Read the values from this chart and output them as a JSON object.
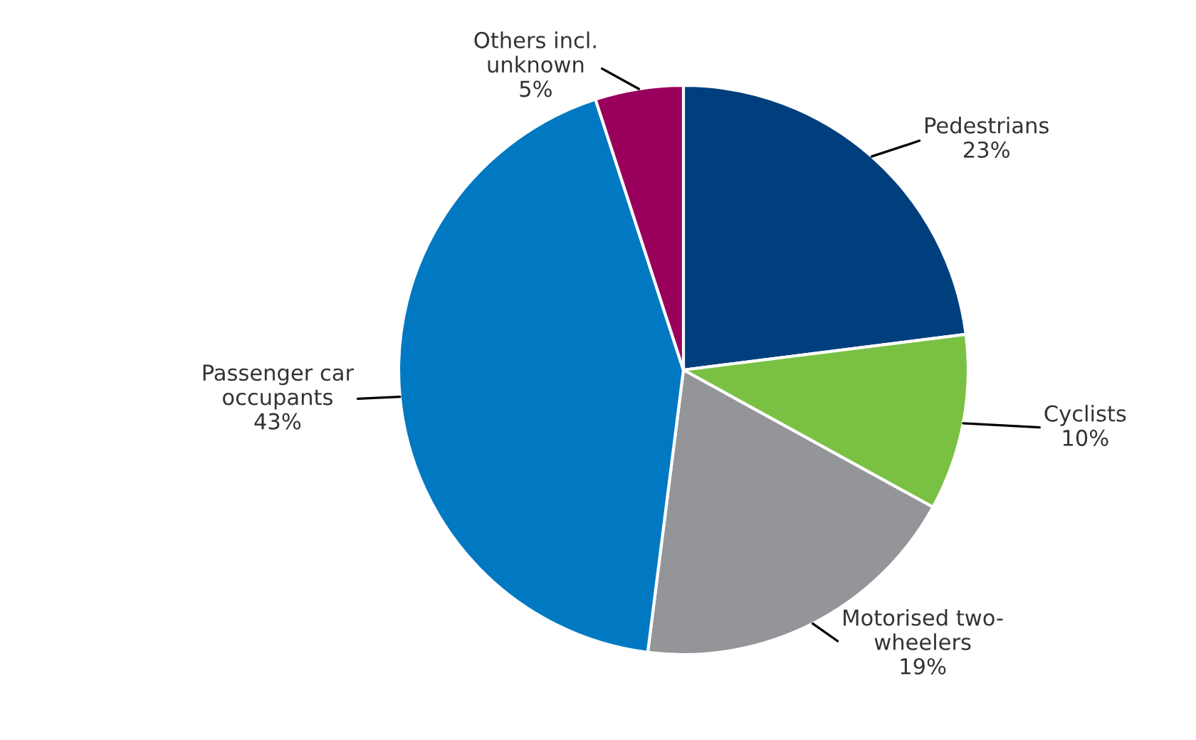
{
  "chart_data": {
    "type": "pie",
    "categories": [
      "Pedestrians",
      "Cyclists",
      "Motorised two-\nwheelers",
      "Passenger car\noccupants",
      "Others incl.\nunknown"
    ],
    "values": [
      23,
      10,
      19,
      43,
      5
    ],
    "value_labels": [
      "23%",
      "10%",
      "19%",
      "43%",
      "5%"
    ],
    "colors": [
      "#003f7d",
      "#7ac143",
      "#939598",
      "#0079c2",
      "#99005c"
    ]
  }
}
